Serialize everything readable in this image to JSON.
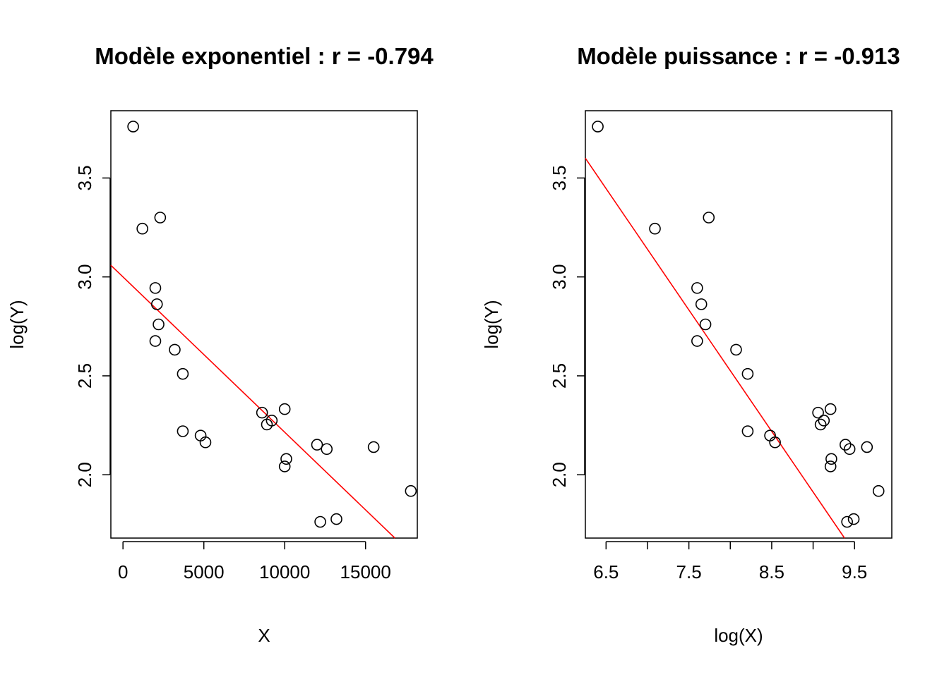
{
  "chart_data": [
    {
      "type": "scatter",
      "title": "Modèle exponentiel : r =  -0.794",
      "xlabel": "X",
      "ylabel": "log(Y)",
      "xlim": [
        -750,
        18200
      ],
      "ylim": [
        1.68,
        3.84
      ],
      "xticks": [
        0,
        5000,
        10000,
        15000
      ],
      "xtick_labels": [
        "0",
        "5000",
        "10000",
        "15000"
      ],
      "yticks": [
        2.0,
        2.5,
        3.0,
        3.5
      ],
      "ytick_labels": [
        "2.0",
        "2.5",
        "3.0",
        "3.5"
      ],
      "grid": false,
      "points": [
        {
          "x": 630,
          "y": 3.76
        },
        {
          "x": 1200,
          "y": 3.244
        },
        {
          "x": 2300,
          "y": 3.3
        },
        {
          "x": 2000,
          "y": 2.944
        },
        {
          "x": 2100,
          "y": 2.862
        },
        {
          "x": 2200,
          "y": 2.76
        },
        {
          "x": 2000,
          "y": 2.676
        },
        {
          "x": 3200,
          "y": 2.632
        },
        {
          "x": 3700,
          "y": 2.51
        },
        {
          "x": 3700,
          "y": 2.22
        },
        {
          "x": 4800,
          "y": 2.198
        },
        {
          "x": 5100,
          "y": 2.164
        },
        {
          "x": 8600,
          "y": 2.314
        },
        {
          "x": 8900,
          "y": 2.254
        },
        {
          "x": 9200,
          "y": 2.274
        },
        {
          "x": 10000,
          "y": 2.332
        },
        {
          "x": 10100,
          "y": 2.08
        },
        {
          "x": 10000,
          "y": 2.042
        },
        {
          "x": 12000,
          "y": 2.152
        },
        {
          "x": 12600,
          "y": 2.13
        },
        {
          "x": 12200,
          "y": 1.762
        },
        {
          "x": 13200,
          "y": 1.776
        },
        {
          "x": 15500,
          "y": 2.14
        },
        {
          "x": 17800,
          "y": 1.918
        }
      ],
      "fit_line": {
        "intercept": 3.0,
        "slope": -7.85e-05,
        "color": "#ff0000"
      }
    },
    {
      "type": "scatter",
      "title": "Modèle puissance : r =  -0.913",
      "xlabel": "log(X)",
      "ylabel": "log(Y)",
      "xlim": [
        6.25,
        9.95
      ],
      "ylim": [
        1.68,
        3.84
      ],
      "xticks": [
        6.5,
        7.0,
        7.5,
        8.0,
        8.5,
        9.0,
        9.5
      ],
      "xtick_labels": [
        "6.5",
        "",
        "7.5",
        "",
        "8.5",
        "",
        "9.5"
      ],
      "yticks": [
        2.0,
        2.5,
        3.0,
        3.5
      ],
      "ytick_labels": [
        "2.0",
        "2.5",
        "3.0",
        "3.5"
      ],
      "grid": false,
      "points": [
        {
          "x": 6.4,
          "y": 3.76
        },
        {
          "x": 7.09,
          "y": 3.244
        },
        {
          "x": 7.74,
          "y": 3.3
        },
        {
          "x": 7.6,
          "y": 2.944
        },
        {
          "x": 7.65,
          "y": 2.862
        },
        {
          "x": 7.7,
          "y": 2.76
        },
        {
          "x": 7.6,
          "y": 2.676
        },
        {
          "x": 8.07,
          "y": 2.632
        },
        {
          "x": 8.21,
          "y": 2.51
        },
        {
          "x": 8.21,
          "y": 2.22
        },
        {
          "x": 8.48,
          "y": 2.198
        },
        {
          "x": 8.54,
          "y": 2.164
        },
        {
          "x": 9.06,
          "y": 2.314
        },
        {
          "x": 9.09,
          "y": 2.254
        },
        {
          "x": 9.13,
          "y": 2.274
        },
        {
          "x": 9.21,
          "y": 2.332
        },
        {
          "x": 9.22,
          "y": 2.08
        },
        {
          "x": 9.21,
          "y": 2.042
        },
        {
          "x": 9.39,
          "y": 2.152
        },
        {
          "x": 9.44,
          "y": 2.13
        },
        {
          "x": 9.41,
          "y": 1.762
        },
        {
          "x": 9.49,
          "y": 1.776
        },
        {
          "x": 9.65,
          "y": 2.14
        },
        {
          "x": 9.79,
          "y": 1.918
        }
      ],
      "fit_line": {
        "intercept": 7.435,
        "slope": -0.6136,
        "color": "#ff0000"
      }
    }
  ]
}
